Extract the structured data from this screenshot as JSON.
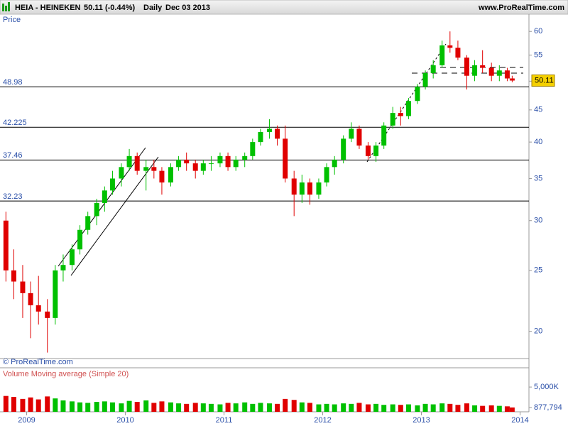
{
  "header": {
    "symbol": "HEIA - HEINEKEN",
    "quote": "50.11 (-0.44%)",
    "period": "Daily",
    "date": "Dec 03 2013",
    "site": "www.ProRealTime.com"
  },
  "chart_data": [
    {
      "type": "candlestick",
      "y_label": "Price",
      "footer": "© ProRealTime.com",
      "log_scale": true,
      "up_color": "#00c000",
      "down_color": "#e00000",
      "xlim": [
        2008.73,
        2014.09
      ],
      "ylim": [
        18.1,
        63.9
      ],
      "yticks": [
        20,
        25,
        30,
        35,
        40,
        45,
        50,
        55,
        60
      ],
      "levels": [
        48.98,
        42.225,
        37.46,
        32.23
      ],
      "x": [
        2008.79,
        2008.87,
        2008.96,
        2009.04,
        2009.12,
        2009.21,
        2009.29,
        2009.37,
        2009.46,
        2009.54,
        2009.62,
        2009.71,
        2009.79,
        2009.87,
        2009.96,
        2010.04,
        2010.12,
        2010.21,
        2010.29,
        2010.37,
        2010.46,
        2010.54,
        2010.62,
        2010.71,
        2010.79,
        2010.87,
        2010.96,
        2011.04,
        2011.12,
        2011.21,
        2011.29,
        2011.37,
        2011.46,
        2011.54,
        2011.62,
        2011.71,
        2011.79,
        2011.87,
        2011.96,
        2012.04,
        2012.12,
        2012.21,
        2012.29,
        2012.37,
        2012.46,
        2012.54,
        2012.62,
        2012.71,
        2012.79,
        2012.87,
        2012.96,
        2013.04,
        2013.12,
        2013.21,
        2013.29,
        2013.37,
        2013.46,
        2013.54,
        2013.62,
        2013.71,
        2013.79,
        2013.87,
        2013.92
      ],
      "open": [
        30,
        25,
        24,
        23,
        22,
        21.5,
        21,
        25,
        25.5,
        27,
        29,
        30.5,
        32,
        33.5,
        35,
        36.5,
        38,
        36,
        36.5,
        36,
        34.5,
        36.5,
        37.5,
        37,
        36,
        37,
        37,
        38,
        36.5,
        37.5,
        38,
        40,
        41.5,
        42,
        40.5,
        35,
        33,
        34.5,
        33,
        34.5,
        36.5,
        37.5,
        40.5,
        42,
        39.5,
        38,
        39.5,
        42.5,
        44.5,
        44,
        46.5,
        49,
        51.5,
        53,
        57,
        56.5,
        54.5,
        51,
        53,
        52.5,
        51,
        52,
        50.5
      ],
      "high": [
        31,
        27,
        25.5,
        24,
        24.5,
        22.5,
        25.5,
        26.5,
        27.5,
        29.5,
        31,
        32.5,
        34,
        36,
        37,
        39,
        38.5,
        37.5,
        37.5,
        36.5,
        37,
        38,
        38.5,
        37.5,
        37.5,
        38,
        38.5,
        38.5,
        38,
        38.5,
        40.5,
        42,
        43.5,
        42.5,
        42.5,
        36,
        35.5,
        35,
        35,
        37,
        38,
        41,
        43,
        42.5,
        40,
        40,
        43,
        45.5,
        45.5,
        47,
        49.5,
        52,
        54,
        58,
        60,
        58,
        55,
        54,
        56,
        53.5,
        53,
        52.5,
        51
      ],
      "low": [
        24,
        22.5,
        21,
        19.5,
        20.5,
        18.5,
        20.5,
        24,
        25,
        26.5,
        28.5,
        29.5,
        31,
        33,
        34,
        36,
        35.5,
        33.5,
        35,
        33,
        34,
        36,
        36,
        35,
        35.5,
        36,
        36.5,
        36,
        36,
        36.5,
        37.5,
        39.5,
        40.5,
        39.5,
        34.5,
        30.5,
        32,
        31.8,
        32.5,
        34,
        35.5,
        37,
        40,
        39,
        37.5,
        37.2,
        39,
        42,
        42.5,
        43.5,
        46,
        48.5,
        50.5,
        52.5,
        55.5,
        54,
        48.5,
        50,
        51.5,
        50,
        50,
        50,
        49.8
      ],
      "close": [
        25,
        24,
        23,
        22,
        21.5,
        21,
        25,
        25.5,
        27,
        29,
        30.5,
        32,
        33.5,
        35,
        36.5,
        38,
        36,
        36.5,
        36,
        34.5,
        36.5,
        37.5,
        37,
        36,
        37,
        37,
        38,
        36.5,
        37.5,
        38,
        40,
        41.5,
        42,
        40.5,
        35,
        33,
        34.5,
        33,
        34.5,
        36.5,
        37.5,
        40.5,
        42,
        39.5,
        38,
        39.5,
        42.5,
        44.5,
        44,
        46.5,
        49,
        51.5,
        53,
        57,
        56.5,
        54.5,
        51,
        53,
        52.5,
        51,
        52,
        50.5,
        50.11
      ]
    },
    {
      "type": "bar",
      "title": "Volume Moving average (Simple 20)",
      "up_color": "#00c000",
      "down_color": "#e00000",
      "xlim": [
        2008.73,
        2014.09
      ],
      "ylim": [
        0,
        8600000
      ],
      "xticks": [
        2009,
        2010,
        2011,
        2012,
        2013,
        2014
      ],
      "yticks": [
        {
          "value": 5000000,
          "label": "5,000K"
        },
        {
          "value": 877794,
          "label": "877,794"
        }
      ],
      "values": [
        3200000,
        3000000,
        2600000,
        2900000,
        2500000,
        3100000,
        2700000,
        2300000,
        2100000,
        1900000,
        1800000,
        2000000,
        2100000,
        1900000,
        1700000,
        2200000,
        2000000,
        2300000,
        1800000,
        2100000,
        1900000,
        1700000,
        1600000,
        1800000,
        1700000,
        1600000,
        1500000,
        1800000,
        1700000,
        1900000,
        1600000,
        1800000,
        1700000,
        1600000,
        2600000,
        2400000,
        1900000,
        1800000,
        1500000,
        1600000,
        1500000,
        1700000,
        1600000,
        1800000,
        1500000,
        1600000,
        1400000,
        1500000,
        1400000,
        1500000,
        1300000,
        1600000,
        1500000,
        1700000,
        1600000,
        1400000,
        1700000,
        1300000,
        1200000,
        1300000,
        1200000,
        1100000,
        877794
      ]
    }
  ]
}
